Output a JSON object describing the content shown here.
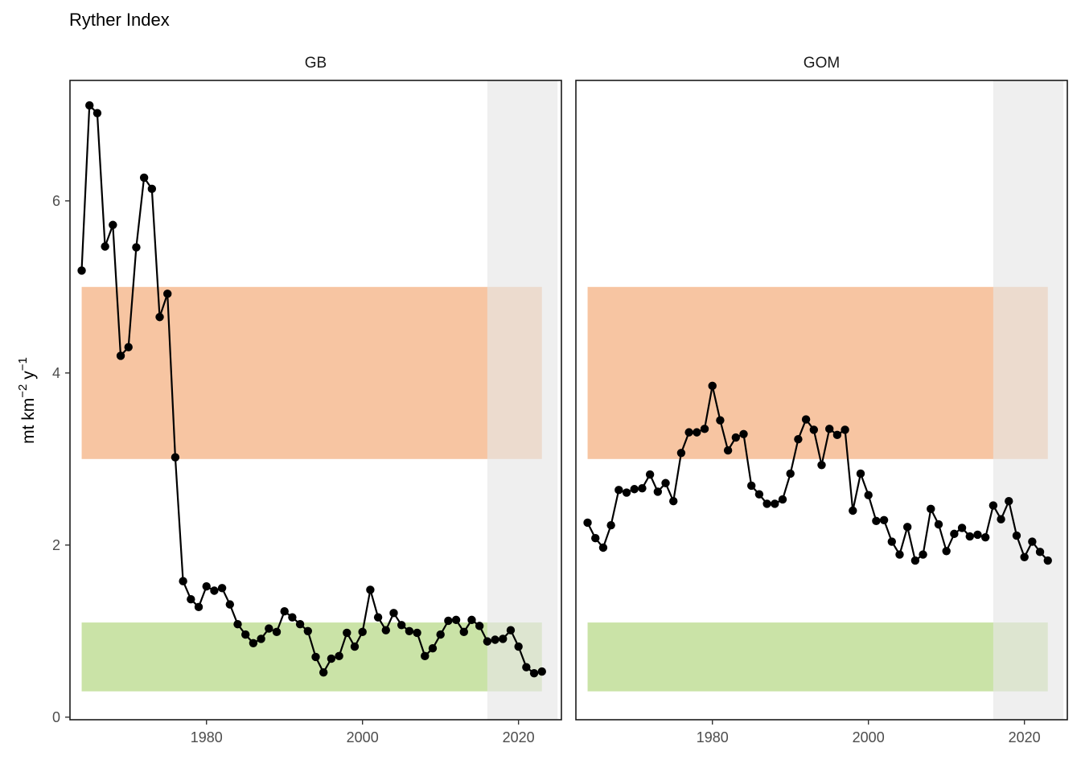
{
  "title": "Ryther Index",
  "ylabel": {
    "base": "mt km",
    "exp1": "−2",
    "mid": " y",
    "exp2": "−1"
  },
  "chart_data": {
    "type": "line",
    "title": "Ryther Index",
    "xlabel": "",
    "ylabel": "mt km−2 y−1",
    "xlim": [
      1962.5,
      2025.5
    ],
    "ylim": [
      -0.03,
      7.4
    ],
    "x_ticks": [
      1980,
      2000,
      2020
    ],
    "y_ticks": [
      0,
      2,
      4,
      6
    ],
    "grid": false,
    "shaded_bands": [
      {
        "y_range": [
          3,
          5
        ],
        "x_range": [
          1964,
          2023
        ],
        "color": "#f4b183"
      },
      {
        "y_range": [
          0.3,
          1.1
        ],
        "x_range": [
          1964,
          2023
        ],
        "color": "#b8d98a"
      }
    ],
    "highlight_period": {
      "x_range": [
        2016,
        2025
      ],
      "color": "#e6e6e6"
    },
    "panels": [
      {
        "name": "GB",
        "x": [
          1964,
          1965,
          1966,
          1967,
          1968,
          1969,
          1970,
          1971,
          1972,
          1973,
          1974,
          1975,
          1976,
          1977,
          1978,
          1979,
          1980,
          1981,
          1982,
          1983,
          1984,
          1985,
          1986,
          1987,
          1988,
          1989,
          1990,
          1991,
          1992,
          1993,
          1994,
          1995,
          1996,
          1997,
          1998,
          1999,
          2000,
          2001,
          2002,
          2003,
          2004,
          2005,
          2006,
          2007,
          2008,
          2009,
          2010,
          2011,
          2012,
          2013,
          2014,
          2015,
          2016,
          2017,
          2018,
          2019,
          2020,
          2021,
          2022,
          2023
        ],
        "values": [
          5.19,
          7.11,
          7.02,
          5.47,
          5.72,
          4.2,
          4.3,
          5.46,
          6.27,
          6.14,
          4.65,
          4.92,
          3.02,
          1.58,
          1.37,
          1.28,
          1.52,
          1.47,
          1.5,
          1.31,
          1.08,
          0.96,
          0.86,
          0.91,
          1.03,
          0.99,
          1.23,
          1.16,
          1.08,
          1.0,
          0.7,
          0.52,
          0.68,
          0.71,
          0.98,
          0.82,
          0.99,
          1.48,
          1.16,
          1.01,
          1.21,
          1.07,
          1.0,
          0.98,
          0.71,
          0.8,
          0.96,
          1.12,
          1.13,
          0.99,
          1.13,
          1.06,
          0.88,
          0.9,
          0.91,
          1.01,
          0.82,
          0.58,
          0.51,
          0.53
        ]
      },
      {
        "name": "GOM",
        "x": [
          1964,
          1965,
          1966,
          1967,
          1968,
          1969,
          1970,
          1971,
          1972,
          1973,
          1974,
          1975,
          1976,
          1977,
          1978,
          1979,
          1980,
          1981,
          1982,
          1983,
          1984,
          1985,
          1986,
          1987,
          1988,
          1989,
          1990,
          1991,
          1992,
          1993,
          1994,
          1995,
          1996,
          1997,
          1998,
          1999,
          2000,
          2001,
          2002,
          2003,
          2004,
          2005,
          2006,
          2007,
          2008,
          2009,
          2010,
          2011,
          2012,
          2013,
          2014,
          2015,
          2016,
          2017,
          2018,
          2019,
          2020,
          2021,
          2022,
          2023
        ],
        "values": [
          2.26,
          2.08,
          1.97,
          2.23,
          2.64,
          2.61,
          2.65,
          2.66,
          2.82,
          2.62,
          2.72,
          2.51,
          3.07,
          3.31,
          3.31,
          3.35,
          3.85,
          3.45,
          3.1,
          3.25,
          3.29,
          2.69,
          2.59,
          2.48,
          2.48,
          2.53,
          2.83,
          3.23,
          3.46,
          3.34,
          2.93,
          3.35,
          3.28,
          3.34,
          2.4,
          2.83,
          2.58,
          2.28,
          2.29,
          2.04,
          1.89,
          2.21,
          1.82,
          1.89,
          2.42,
          2.24,
          1.93,
          2.13,
          2.2,
          2.1,
          2.12,
          2.09,
          2.46,
          2.3,
          2.51,
          2.11,
          1.86,
          2.04,
          1.92,
          1.82
        ]
      }
    ]
  }
}
